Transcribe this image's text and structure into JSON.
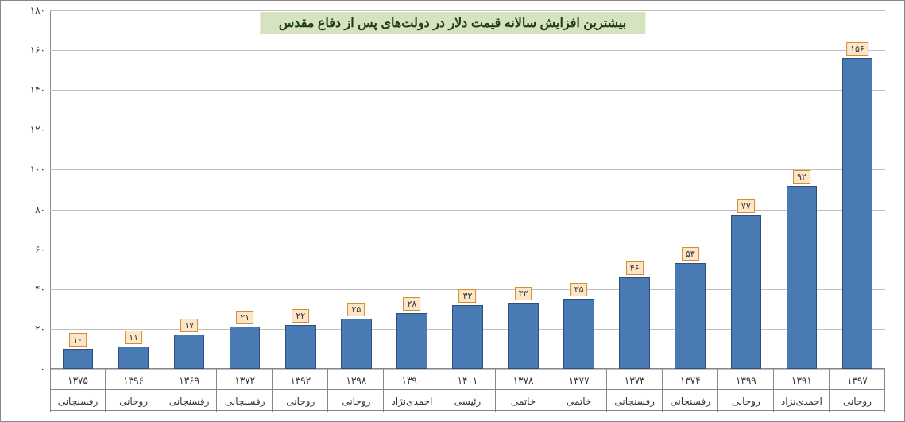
{
  "chart": {
    "title": "بیشترین افزایش سالانه قیمت دلار در دولت‌های پس از دفاع مقدس",
    "title_bg": "#d5e3bf",
    "title_color": "#1f3b1a",
    "title_fontsize": 16,
    "type": "bar",
    "y_axis": {
      "min": 0,
      "max": 180,
      "tick_step": 20,
      "tick_labels": [
        "۰",
        "۲۰",
        "۴۰",
        "۶۰",
        "۸۰",
        "۱۰۰",
        "۱۲۰",
        "۱۴۰",
        "۱۶۰",
        "۱۸۰"
      ],
      "tick_color": "#333333",
      "grid_color": "#bfbfbf"
    },
    "style": {
      "bar_color": "#4a7ab4",
      "bar_border": "#2f4e78",
      "bar_width_ratio": 0.55,
      "label_bg": "#fce6c7",
      "label_border": "#d28f32",
      "label_color": "#333333",
      "xtick_color": "#333333",
      "xtick_line_color": "#888888",
      "background": "#ffffff"
    },
    "data": [
      {
        "year": "۱۳۹۷",
        "gov": "روحانی",
        "value": 156,
        "label": "۱۵۶"
      },
      {
        "year": "۱۳۹۱",
        "gov": "احمدی‌نژاد",
        "value": 92,
        "label": "۹۲"
      },
      {
        "year": "۱۳۹۹",
        "gov": "روحانی",
        "value": 77,
        "label": "۷۷"
      },
      {
        "year": "۱۳۷۴",
        "gov": "رفسنجانی",
        "value": 53,
        "label": "۵۳"
      },
      {
        "year": "۱۳۷۳",
        "gov": "رفسنجانی",
        "value": 46,
        "label": "۴۶"
      },
      {
        "year": "۱۳۷۷",
        "gov": "خاتمی",
        "value": 35,
        "label": "۳۵"
      },
      {
        "year": "۱۳۷۸",
        "gov": "خاتمی",
        "value": 33,
        "label": "۳۳"
      },
      {
        "year": "۱۴۰۱",
        "gov": "رئیسی",
        "value": 32,
        "label": "۳۲"
      },
      {
        "year": "۱۳۹۰",
        "gov": "احمدی‌نژاد",
        "value": 28,
        "label": "۲۸"
      },
      {
        "year": "۱۳۹۸",
        "gov": "روحانی",
        "value": 25,
        "label": "۲۵"
      },
      {
        "year": "۱۳۹۲",
        "gov": "روحانی",
        "value": 22,
        "label": "۲۲"
      },
      {
        "year": "۱۳۷۲",
        "gov": "رفسنجانی",
        "value": 21,
        "label": "۲۱"
      },
      {
        "year": "۱۳۶۹",
        "gov": "رفسنجانی",
        "value": 17,
        "label": "۱۷"
      },
      {
        "year": "۱۳۹۶",
        "gov": "روحانی",
        "value": 11,
        "label": "۱۱"
      },
      {
        "year": "۱۳۷۵",
        "gov": "رفسنجانی",
        "value": 10,
        "label": "۱۰"
      }
    ]
  }
}
